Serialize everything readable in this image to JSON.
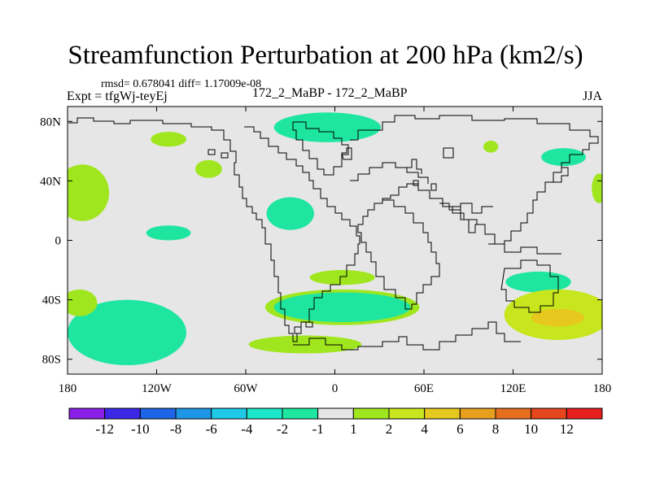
{
  "chart_data": {
    "type": "heatmap",
    "title": "Streamfunction Perturbation at 200 hPa (km2/s)",
    "stats": "rmsd= 0.678041 diff= 1.17009e-08",
    "left_label": "Expt = tfgWj-teyEj",
    "center_label": "172_2_MaBP - 172_2_MaBP",
    "right_label": "JJA",
    "x_range": [
      -180,
      180
    ],
    "y_range": [
      -90,
      90
    ],
    "lat_ticks": [
      {
        "value": 80,
        "label": "80N"
      },
      {
        "value": 40,
        "label": "40N"
      },
      {
        "value": 0,
        "label": "0"
      },
      {
        "value": -40,
        "label": "40S"
      },
      {
        "value": -80,
        "label": "80S"
      }
    ],
    "lon_ticks": [
      {
        "value": -180,
        "label": "180"
      },
      {
        "value": -120,
        "label": "120W"
      },
      {
        "value": -60,
        "label": "60W"
      },
      {
        "value": 0,
        "label": "0"
      },
      {
        "value": 60,
        "label": "60E"
      },
      {
        "value": 120,
        "label": "120E"
      },
      {
        "value": 180,
        "label": "180"
      }
    ],
    "colorbar": {
      "colors": [
        "#8a1ee6",
        "#3a28e6",
        "#1e64e6",
        "#1e96e6",
        "#1ec8e6",
        "#1ee6c8",
        "#1ee6a0",
        "#e6e6e6",
        "#a0e61e",
        "#c8e61e",
        "#e6c81e",
        "#e6a01e",
        "#e66e1e",
        "#e6461e",
        "#e61e1e"
      ],
      "labels": [
        "-12",
        "-10",
        "-8",
        "-6",
        "-4",
        "-2",
        "-1",
        "1",
        "2",
        "4",
        "6",
        "8",
        "10",
        "12"
      ]
    },
    "regions": [
      {
        "name": "arctic-north-atlantic",
        "level": -1,
        "lon": -5,
        "lat": 76,
        "rlon": 36,
        "rlat": 10
      },
      {
        "name": "north-pacific-east",
        "level": 1,
        "lon": -112,
        "lat": 68,
        "rlon": 12,
        "rlat": 5
      },
      {
        "name": "north-america-west",
        "level": 1,
        "lon": -85,
        "lat": 48,
        "rlon": 9,
        "rlat": 6
      },
      {
        "name": "siberia",
        "level": 1,
        "lon": 105,
        "lat": 63,
        "rlon": 5,
        "rlat": 4
      },
      {
        "name": "kamchatka",
        "level": -1,
        "lon": 154,
        "lat": 56,
        "rlon": 15,
        "rlat": 6
      },
      {
        "name": "north-pacific-west-edge",
        "level": 1,
        "lon": -170,
        "lat": 32,
        "rlon": 18,
        "rlat": 19
      },
      {
        "name": "atlantic-tropical",
        "level": -1,
        "lon": -30,
        "lat": 18,
        "rlon": 16,
        "rlat": 11
      },
      {
        "name": "east-pacific-tropical",
        "level": -1,
        "lon": -112,
        "lat": 5,
        "rlon": 15,
        "rlat": 5
      },
      {
        "name": "south-atlantic",
        "level": 1,
        "lon": 5,
        "lat": -25,
        "rlon": 22,
        "rlat": 5
      },
      {
        "name": "southern-ocean-atlantic",
        "level": -1,
        "lon": 5,
        "lat": -45,
        "rlon": 46,
        "rlat": 10
      },
      {
        "name": "southern-ocean-atlantic-rim",
        "level": 1,
        "lon": 5,
        "lat": -45,
        "rlon": 52,
        "rlat": 12
      },
      {
        "name": "indian-ocean-south",
        "level": -1,
        "lon": 137,
        "lat": -28,
        "rlon": 22,
        "rlat": 7
      },
      {
        "name": "australia-south",
        "level": 2,
        "lon": 150,
        "lat": -50,
        "rlon": 36,
        "rlat": 17
      },
      {
        "name": "australia-south-core",
        "level": 4,
        "lon": 150,
        "lat": -52,
        "rlon": 18,
        "rlat": 6
      },
      {
        "name": "south-pacific-west",
        "level": -1,
        "lon": -140,
        "lat": -62,
        "rlon": 40,
        "rlat": 22
      },
      {
        "name": "south-pacific-far-west",
        "level": 1,
        "lon": -172,
        "lat": -42,
        "rlon": 12,
        "rlat": 9
      },
      {
        "name": "drake-passage",
        "level": 1,
        "lon": -20,
        "lat": -70,
        "rlon": 38,
        "rlat": 6
      },
      {
        "name": "tasman-edge",
        "level": 1,
        "lon": 178,
        "lat": 35,
        "rlon": 5,
        "rlat": 10
      }
    ]
  }
}
